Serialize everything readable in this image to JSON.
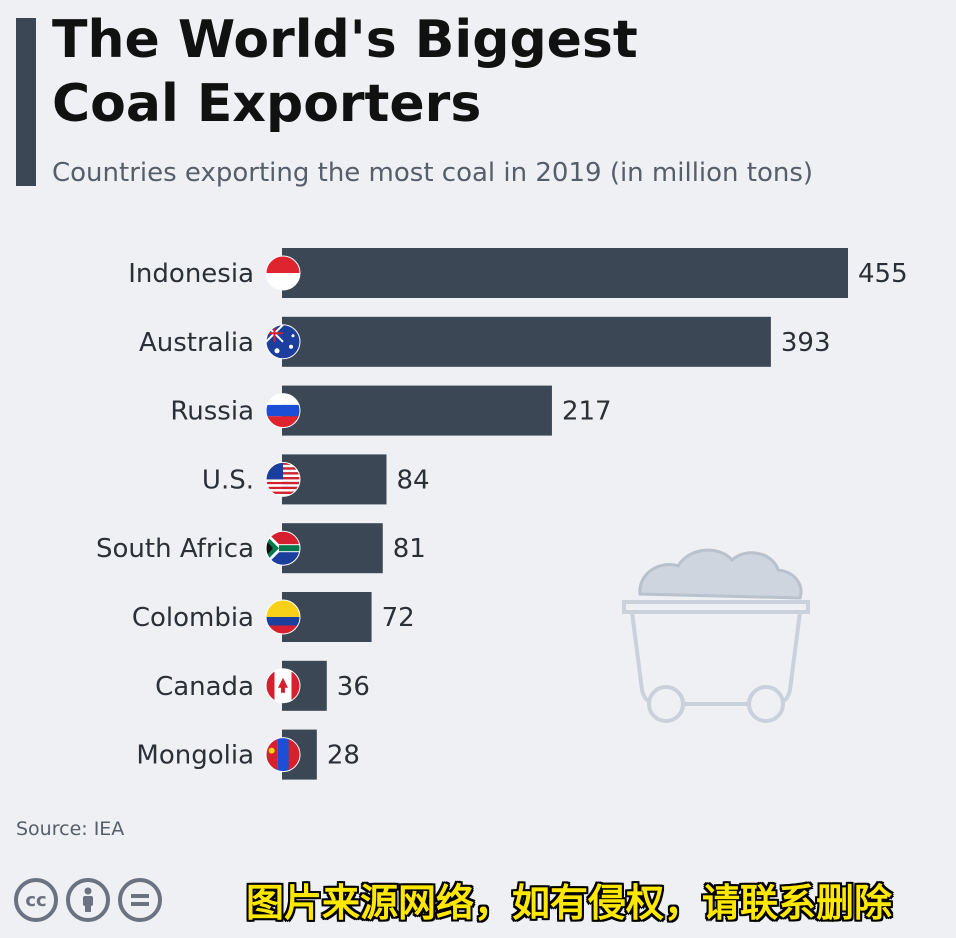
{
  "header": {
    "title": "The World's Biggest\nCoal Exporters",
    "subtitle": "Countries exporting the most coal in 2019 (in million tons)"
  },
  "footer": {
    "source": "Source: IEA",
    "license_icons": [
      "cc-icon",
      "attribution-icon",
      "no-derivatives-icon"
    ],
    "watermark": "图片来源网络，如有侵权，请联系删除"
  },
  "colors": {
    "bar": "#3b4754",
    "background": "#eef0f4",
    "header_bar": "#3b4754"
  },
  "chart_data": {
    "type": "bar",
    "orientation": "horizontal",
    "title": "The World's Biggest Coal Exporters",
    "subtitle": "Countries exporting the most coal in 2019 (in million tons)",
    "categories": [
      "Indonesia",
      "Australia",
      "Russia",
      "U.S.",
      "South Africa",
      "Colombia",
      "Canada",
      "Mongolia"
    ],
    "values": [
      455,
      393,
      217,
      84,
      81,
      72,
      36,
      28
    ],
    "flags": [
      "indonesia-flag-icon",
      "australia-flag-icon",
      "russia-flag-icon",
      "us-flag-icon",
      "south-africa-flag-icon",
      "colombia-flag-icon",
      "canada-flag-icon",
      "mongolia-flag-icon"
    ],
    "xlim": [
      0,
      455
    ],
    "grid": false,
    "legend": "none"
  }
}
